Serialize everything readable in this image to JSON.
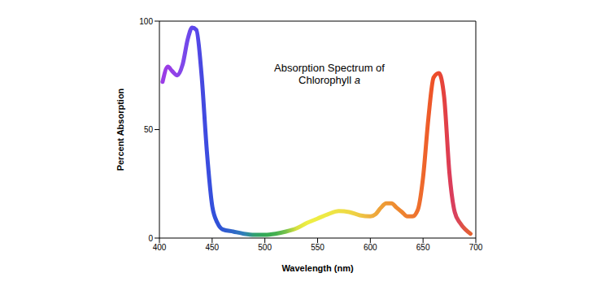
{
  "chart_data": {
    "type": "line",
    "title": "Absorption Spectrum of Chlorophyll a",
    "x_label": "Wavelength (nm)",
    "y_label": "Percent Absorption",
    "x": [
      403,
      408,
      412,
      417,
      422,
      427,
      431,
      435,
      440,
      445,
      450,
      455,
      460,
      470,
      480,
      490,
      500,
      510,
      520,
      530,
      540,
      550,
      560,
      570,
      580,
      590,
      600,
      605,
      610,
      615,
      620,
      625,
      630,
      635,
      640,
      645,
      650,
      655,
      660,
      665,
      670,
      675,
      680,
      685,
      690,
      695
    ],
    "values": [
      72,
      79,
      77,
      75,
      80,
      92,
      97,
      96,
      75,
      40,
      15,
      7,
      4,
      3,
      2,
      1.5,
      1.5,
      2,
      3,
      4.5,
      7,
      9,
      11,
      12.5,
      12,
      10.5,
      10,
      11,
      14,
      16,
      16,
      14,
      12,
      10,
      10,
      13,
      28,
      55,
      74,
      76,
      65,
      30,
      12,
      7,
      4,
      2
    ],
    "colors": [
      "#9a3ce6",
      "#9a3ce6",
      "#9540e6",
      "#8c44e8",
      "#8048ea",
      "#7048ea",
      "#6048ec",
      "#5848ea",
      "#4848e0",
      "#3c4ce0",
      "#3450dc",
      "#3050d8",
      "#3058d4",
      "#3068c8",
      "#3080b8",
      "#30a070",
      "#33aa55",
      "#44b050",
      "#77c24a",
      "#d8e040",
      "#eeee44",
      "#eeec44",
      "#eee844",
      "#eee044",
      "#eed844",
      "#eec844",
      "#eeb040",
      "#eea83c",
      "#eea038",
      "#ee9834",
      "#ee9032",
      "#ee8a30",
      "#ee8430",
      "#ee7e30",
      "#ee7830",
      "#ee702e",
      "#ee682c",
      "#ee5c2a",
      "#ee5028",
      "#ea4830",
      "#e44240",
      "#dc3c58",
      "#d84060",
      "#dc4a50",
      "#e05840",
      "#e46030"
    ],
    "xlim": [
      400,
      700
    ],
    "xticks": [
      400,
      450,
      500,
      550,
      600,
      650,
      700
    ],
    "ylim": [
      0,
      100
    ],
    "yticks": [
      0,
      50,
      100
    ],
    "grid": false
  }
}
